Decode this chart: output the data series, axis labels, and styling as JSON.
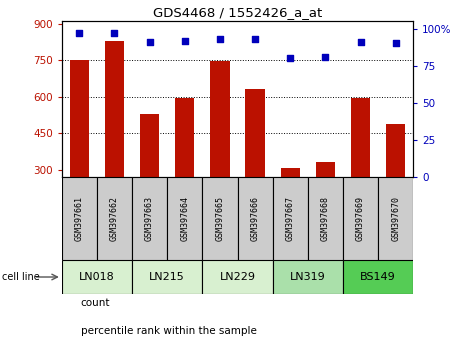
{
  "title": "GDS4468 / 1552426_a_at",
  "samples": [
    "GSM397661",
    "GSM397662",
    "GSM397663",
    "GSM397664",
    "GSM397665",
    "GSM397666",
    "GSM397667",
    "GSM397668",
    "GSM397669",
    "GSM397670"
  ],
  "counts": [
    750,
    830,
    530,
    595,
    748,
    633,
    307,
    330,
    595,
    488
  ],
  "percentiles": [
    97,
    97,
    91,
    92,
    93,
    93,
    80,
    81,
    91,
    90
  ],
  "cell_lines": [
    {
      "name": "LN018",
      "span": [
        0,
        2
      ],
      "color": "#d8f0d0"
    },
    {
      "name": "LN215",
      "span": [
        2,
        4
      ],
      "color": "#d8f0d0"
    },
    {
      "name": "LN229",
      "span": [
        4,
        6
      ],
      "color": "#d8f0d0"
    },
    {
      "name": "LN319",
      "span": [
        6,
        8
      ],
      "color": "#aae0aa"
    },
    {
      "name": "BS149",
      "span": [
        8,
        10
      ],
      "color": "#55cc55"
    }
  ],
  "ylim_left": [
    270,
    910
  ],
  "ylim_right": [
    0,
    105
  ],
  "yticks_left": [
    300,
    450,
    600,
    750,
    900
  ],
  "yticks_right": [
    0,
    25,
    50,
    75,
    100
  ],
  "bar_color": "#bb1100",
  "dot_color": "#0000bb",
  "bar_bottom": 270,
  "grid_yticks": [
    450,
    600,
    750
  ],
  "sample_box_color": "#cccccc",
  "legend_items": [
    {
      "color": "#bb1100",
      "label": "count"
    },
    {
      "color": "#0000bb",
      "label": "percentile rank within the sample"
    }
  ]
}
